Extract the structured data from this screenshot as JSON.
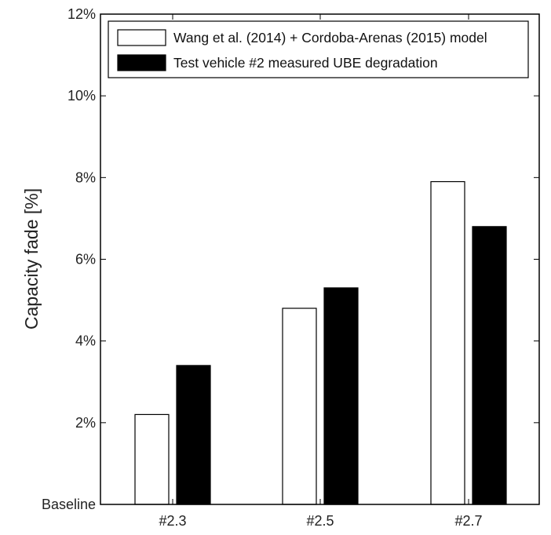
{
  "chart_data": {
    "type": "bar",
    "categories": [
      "#2.3",
      "#2.5",
      "#2.7"
    ],
    "series": [
      {
        "name": "Wang et al. (2014) + Cordoba-Arenas (2015) model",
        "values": [
          2.2,
          4.8,
          7.9
        ],
        "color": "#ffffff"
      },
      {
        "name": "Test vehicle #2 measured UBE degradation",
        "values": [
          3.4,
          5.3,
          6.8
        ],
        "color": "#000000"
      }
    ],
    "title": "",
    "xlabel": "",
    "ylabel": "Capacity fade [%]",
    "ylim": [
      0,
      12
    ],
    "yticks": [
      0,
      2,
      4,
      6,
      8,
      10,
      12
    ],
    "ytick_labels": [
      "Baseline",
      "2%",
      "4%",
      "6%",
      "8%",
      "10%",
      "12%"
    ],
    "grid": false,
    "legend_position": "top"
  }
}
